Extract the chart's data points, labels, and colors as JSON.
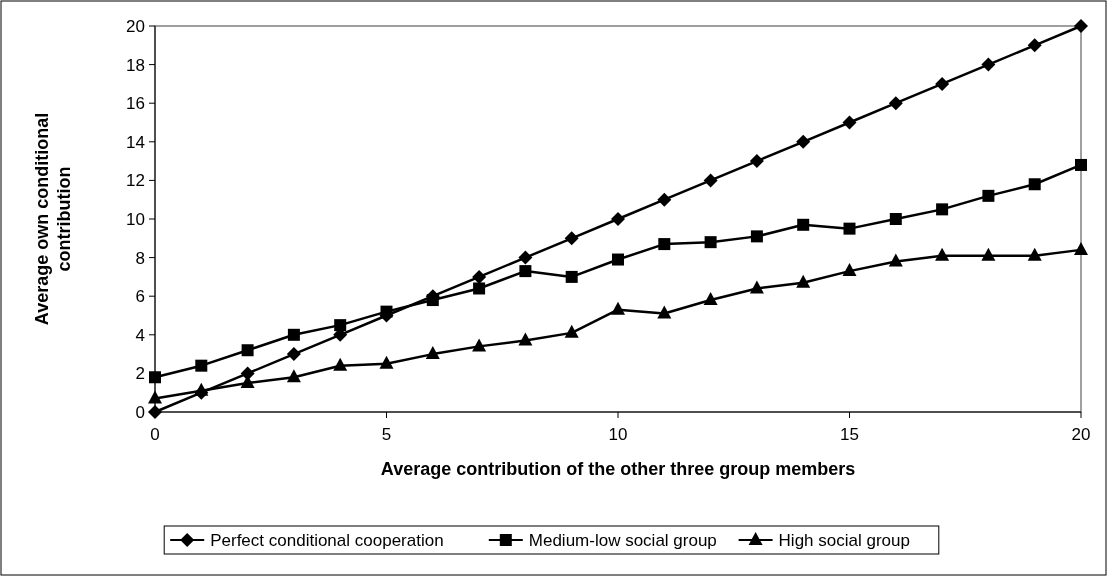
{
  "chart_data": {
    "type": "line",
    "xlabel": "Average contribution of the other three group members",
    "ylabel": "Average own conditional contribution",
    "x": [
      0,
      1,
      2,
      3,
      4,
      5,
      6,
      7,
      8,
      9,
      10,
      11,
      12,
      13,
      14,
      15,
      16,
      17,
      18,
      19,
      20
    ],
    "xlim": [
      0,
      20
    ],
    "xticks": [
      0,
      5,
      10,
      15,
      20
    ],
    "ylim": [
      0,
      20
    ],
    "yticks": [
      0,
      2,
      4,
      6,
      8,
      10,
      12,
      14,
      16,
      18,
      20
    ],
    "grid": false,
    "legend": "bottom",
    "line_style": "solid",
    "series": [
      {
        "name": "Perfect conditional cooperation",
        "color": "#000000",
        "marker": "diamond",
        "values": [
          0,
          1,
          2,
          3,
          4,
          5,
          6,
          7,
          8,
          9,
          10,
          11,
          12,
          13,
          14,
          15,
          16,
          17,
          18,
          19,
          20
        ]
      },
      {
        "name": "Medium-low social group",
        "color": "#000000",
        "marker": "square",
        "values": [
          1.8,
          2.4,
          3.2,
          4.0,
          4.5,
          5.2,
          5.8,
          6.4,
          7.3,
          7.0,
          7.9,
          8.7,
          8.8,
          9.1,
          9.7,
          9.5,
          10.0,
          10.5,
          11.2,
          11.8,
          12.8
        ]
      },
      {
        "name": "High social group",
        "color": "#000000",
        "marker": "triangle",
        "values": [
          0.7,
          1.1,
          1.5,
          1.8,
          2.4,
          2.5,
          3.0,
          3.4,
          3.7,
          4.1,
          5.3,
          5.1,
          5.8,
          6.4,
          6.7,
          7.3,
          7.8,
          8.1,
          8.1,
          8.1,
          8.4
        ]
      }
    ]
  }
}
